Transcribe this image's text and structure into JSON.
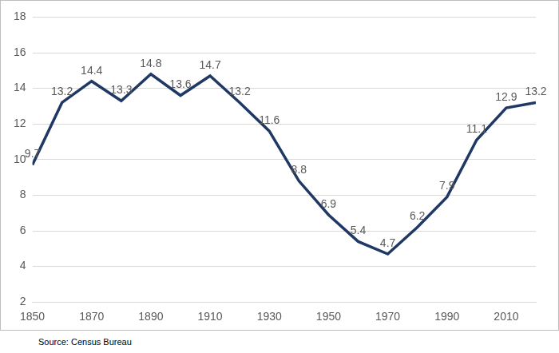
{
  "chart_data": {
    "type": "line",
    "x": [
      1850,
      1860,
      1870,
      1880,
      1890,
      1900,
      1910,
      1920,
      1930,
      1940,
      1950,
      1960,
      1970,
      1980,
      1990,
      2000,
      2010,
      2020
    ],
    "values": [
      9.7,
      13.2,
      14.4,
      13.3,
      14.8,
      13.6,
      14.7,
      13.2,
      11.6,
      8.8,
      6.9,
      5.4,
      4.7,
      6.2,
      7.9,
      11.1,
      12.9,
      13.2
    ],
    "color": "#203864",
    "xlim": [
      1850,
      2020
    ],
    "xticks": [
      1850,
      1870,
      1890,
      1910,
      1930,
      1950,
      1970,
      1990,
      2010
    ],
    "ylim": [
      2,
      18
    ],
    "yticks": [
      2,
      4,
      6,
      8,
      10,
      12,
      14,
      16,
      18
    ],
    "grid": true,
    "data_labels": true,
    "source": "Source: Census Bureau"
  }
}
